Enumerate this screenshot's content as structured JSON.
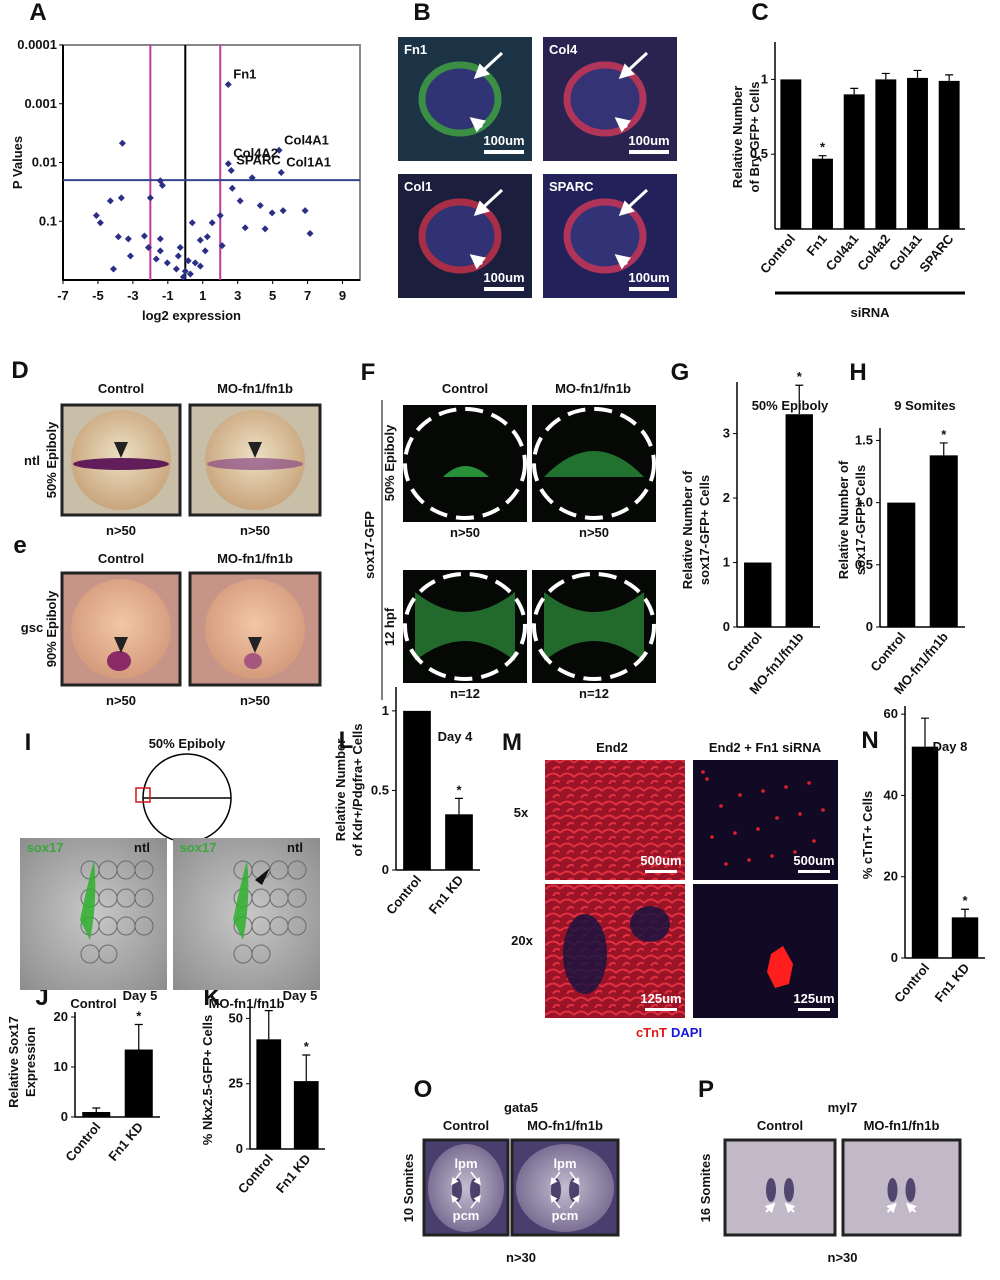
{
  "chart_data": [
    {
      "panel": "A",
      "type": "scatter",
      "ylabel": "P Values",
      "xlabel": "log2 expression",
      "color": "#2b2f86",
      "x": [
        2.46,
        -3.6,
        5.37,
        2.46,
        2.63,
        5.49,
        -1.43,
        -1.31,
        2.69,
        3.83,
        -4.29,
        -3.66,
        -2.0,
        -5.09,
        -4.86,
        4.97,
        5.6,
        6.86,
        4.29,
        1.54,
        2.0,
        3.43,
        7.14,
        -3.83,
        -3.26,
        -2.34,
        -2.11,
        -1.43,
        -4.11,
        -3.14,
        -1.66,
        -1.03,
        -0.51,
        0,
        0.29,
        0.57,
        0.86,
        1.14,
        -0.4,
        -0.11,
        -0.29,
        0.86,
        1.26,
        0.4,
        2.11,
        -1.43,
        0.17,
        3.14,
        4.57
      ],
      "values": [
        0.00047,
        0.0047,
        0.0062,
        0.0105,
        0.0137,
        0.0148,
        0.0204,
        0.0245,
        0.0275,
        0.0182,
        0.045,
        0.04,
        0.04,
        0.08,
        0.106,
        0.072,
        0.066,
        0.066,
        0.054,
        0.106,
        0.08,
        0.129,
        0.162,
        0.184,
        0.2,
        0.178,
        0.28,
        0.2,
        0.65,
        0.39,
        0.44,
        0.51,
        0.65,
        0.71,
        0.79,
        0.51,
        0.58,
        0.32,
        0.39,
        0.89,
        0.28,
        0.21,
        0.184,
        0.106,
        0.26,
        0.32,
        0.47,
        0.045,
        0.135
      ],
      "point_labels": [
        "Fn1",
        null,
        "Col4A1",
        "Col4A2",
        "SPARC",
        "Col1A1",
        null,
        null,
        null,
        null,
        null,
        null,
        null,
        null,
        null,
        null,
        null,
        null,
        null,
        null,
        null,
        null,
        null,
        null,
        null,
        null,
        null,
        null,
        null,
        null,
        null,
        null,
        null,
        null,
        null,
        null,
        null,
        null,
        null,
        null,
        null,
        null,
        null,
        null,
        null,
        null,
        null,
        null,
        null
      ],
      "xlim": [
        -7,
        10
      ],
      "xticks": [
        -7,
        -5,
        -3,
        -1,
        1,
        3,
        5,
        7,
        9
      ],
      "ylim": [
        1,
        0.0001
      ],
      "yticks": [
        0.1,
        0.01,
        0.001,
        0.0001
      ],
      "log_y": true,
      "reference_lines": {
        "x": [
          {
            "value": 0,
            "color": "#000000"
          },
          {
            "value": -2,
            "color": "#c2399c"
          },
          {
            "value": 2,
            "color": "#c2399c"
          }
        ],
        "y": [
          {
            "value": 0.02,
            "color": "#34458f"
          }
        ]
      }
    },
    {
      "panel": "C",
      "type": "bar",
      "ylabel": [
        "Relative Number",
        "of Bry-GFP+ Cells"
      ],
      "xlabel": "siRNA",
      "color": "#000000",
      "categories": [
        "Control",
        "Fn1",
        "Col4a1",
        "Col4a2",
        "Col1a1",
        "SPARC"
      ],
      "values": [
        1,
        0.47,
        0.9,
        1,
        1.01,
        0.99
      ],
      "errors": [
        null,
        0.02,
        0.04,
        0.04,
        0.05,
        0.04
      ],
      "significance": [
        null,
        "*",
        null,
        null,
        null,
        null
      ],
      "ylim": [
        0,
        1.25
      ],
      "yticks": [
        0.5,
        1
      ]
    },
    {
      "panel": "G",
      "type": "bar",
      "title": "50% Epiboly",
      "ylabel": [
        "Relative  Number of",
        "sox17-GFP+ Cells"
      ],
      "color": "#000000",
      "categories": [
        "Control",
        "MO-fn1/fn1b"
      ],
      "values": [
        1,
        3.3
      ],
      "errors": [
        null,
        0.45
      ],
      "significance": [
        null,
        "*"
      ],
      "ylim": [
        0,
        3.8
      ],
      "yticks": [
        0,
        1,
        2,
        3
      ]
    },
    {
      "panel": "H",
      "type": "bar",
      "title": "9 Somites",
      "ylabel": [
        "Relative  Number of",
        "sox17-GFP+ Cells"
      ],
      "color": "#000000",
      "categories": [
        "Control",
        "MO-fn1/fn1b"
      ],
      "values": [
        1,
        1.38
      ],
      "errors": [
        null,
        0.1
      ],
      "significance": [
        null,
        "*"
      ],
      "ylim": [
        0,
        1.6
      ],
      "yticks": [
        0,
        0.5,
        {
          "value": 1,
          "label": "1.0"
        },
        1.5
      ]
    },
    {
      "panel": "J",
      "type": "bar",
      "title": "Day 5",
      "ylabel": [
        "Relative Sox17",
        "Expression"
      ],
      "color": "#000000",
      "categories": [
        "Control",
        "Fn1 KD"
      ],
      "values": [
        1,
        13.5
      ],
      "errors": [
        0.8,
        5
      ],
      "significance": [
        null,
        "*"
      ],
      "ylim": [
        0,
        21
      ],
      "yticks": [
        0,
        10,
        20
      ]
    },
    {
      "panel": "K",
      "type": "bar",
      "title": "Day 5",
      "ylabel": [
        "% Nkx2.5-GFP+ Cells"
      ],
      "color": "#000000",
      "categories": [
        "Control",
        "Fn1 KD"
      ],
      "values": [
        42,
        26
      ],
      "errors": [
        11,
        10
      ],
      "significance": [
        null,
        "*"
      ],
      "ylim": [
        0,
        54
      ],
      "yticks": [
        0,
        25,
        50
      ]
    },
    {
      "panel": "L",
      "type": "bar",
      "title": "Day 4",
      "ylabel": [
        "Relative Number",
        "of Kdr+/Pdgfra+ Cells"
      ],
      "color": "#000000",
      "categories": [
        "Control",
        "Fn1 KD"
      ],
      "values": [
        1,
        0.35
      ],
      "errors": [
        null,
        0.1
      ],
      "significance": [
        null,
        "*"
      ],
      "ylim": [
        0,
        1.15
      ],
      "yticks": [
        0,
        0.5,
        1
      ]
    },
    {
      "panel": "N",
      "type": "bar",
      "title": "Day 8",
      "ylabel": [
        "% cTnT+ Cells"
      ],
      "color": "#000000",
      "categories": [
        "Control",
        "Fn1 KD"
      ],
      "values": [
        52,
        10
      ],
      "errors": [
        7,
        2
      ],
      "significance": [
        null,
        "*"
      ],
      "ylim": [
        0,
        62
      ],
      "yticks": [
        0,
        20,
        40,
        60
      ]
    }
  ],
  "image_panels": [
    {
      "panel": "B",
      "tiles": [
        {
          "label": "Fn1",
          "scale": "100um"
        },
        {
          "label": "Col4",
          "scale": "100um"
        },
        {
          "label": "Col1",
          "scale": "100um"
        },
        {
          "label": "SPARC",
          "scale": "100um"
        }
      ]
    },
    {
      "panel": "D",
      "columns": [
        "Control",
        "MO-fn1/fn1b"
      ],
      "gene": "ntl",
      "stage": "50% Epiboly",
      "counts": [
        "n>50",
        "n>50"
      ]
    },
    {
      "panel": "e",
      "columns": [
        "Control",
        "MO-fn1/fn1b"
      ],
      "gene": "gsc",
      "stage": "90% Epiboly",
      "counts": [
        "n>50",
        "n>50"
      ]
    },
    {
      "panel": "F",
      "columns": [
        "Control",
        "MO-fn1/fn1b"
      ],
      "reporter": "sox17-GFP",
      "rows": [
        "50% Epiboly",
        "12 hpf"
      ],
      "counts": [
        "n>50",
        "n>50",
        "n=12",
        "n=12"
      ]
    },
    {
      "panel": "I",
      "title": "50% Epiboly",
      "stains": [
        "sox17",
        "ntl",
        "sox17",
        "ntl"
      ],
      "captions": [
        "Control",
        "MO-fn1/fn1b"
      ]
    },
    {
      "panel": "M",
      "columns": [
        "End2",
        "End2 + Fn1 siRNA"
      ],
      "rows": [
        "5x",
        "20x"
      ],
      "scales": [
        "500um",
        "500um",
        "125um",
        "125um"
      ],
      "legend": [
        "cTnT",
        "DAPI"
      ]
    },
    {
      "panel": "O",
      "title": "gata5",
      "columns": [
        "Control",
        "MO-fn1/fn1b"
      ],
      "stage": "10 Somites",
      "arrow_labels": [
        "lpm",
        "pcm",
        "lpm",
        "pcm"
      ],
      "count": "n>30"
    },
    {
      "panel": "P",
      "title": "myl7",
      "columns": [
        "Control",
        "MO-fn1/fn1b"
      ],
      "stage": "16 Somites",
      "count": "n>30"
    }
  ]
}
